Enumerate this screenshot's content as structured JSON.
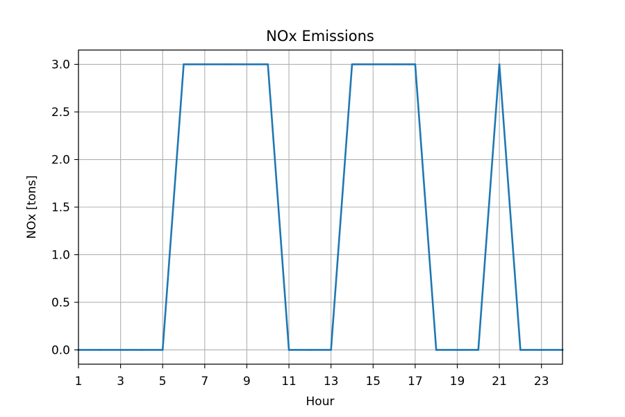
{
  "chart_data": {
    "type": "line",
    "title": "NOx Emissions",
    "xlabel": "Hour",
    "ylabel": "NOx [tons]",
    "xlim": [
      1,
      24
    ],
    "ylim": [
      -0.15,
      3.15
    ],
    "x_ticks": [
      1,
      3,
      5,
      7,
      9,
      11,
      13,
      15,
      17,
      19,
      21,
      23
    ],
    "x_tick_labels": [
      "1",
      "3",
      "5",
      "7",
      "9",
      "11",
      "13",
      "15",
      "17",
      "19",
      "21",
      "23"
    ],
    "y_ticks": [
      0.0,
      0.5,
      1.0,
      1.5,
      2.0,
      2.5,
      3.0
    ],
    "y_tick_labels": [
      "0.0",
      "0.5",
      "1.0",
      "1.5",
      "2.0",
      "2.5",
      "3.0"
    ],
    "grid": true,
    "series": [
      {
        "color": "#1f77b4",
        "x": [
          1,
          2,
          3,
          4,
          5,
          6,
          7,
          8,
          9,
          10,
          11,
          12,
          13,
          14,
          15,
          16,
          17,
          18,
          19,
          20,
          21,
          22,
          23,
          24
        ],
        "values": [
          0,
          0,
          0,
          0,
          0,
          3,
          3,
          3,
          3,
          3,
          0,
          0,
          0,
          3,
          3,
          3,
          3,
          0,
          0,
          0,
          3,
          0,
          0,
          0
        ]
      }
    ]
  }
}
